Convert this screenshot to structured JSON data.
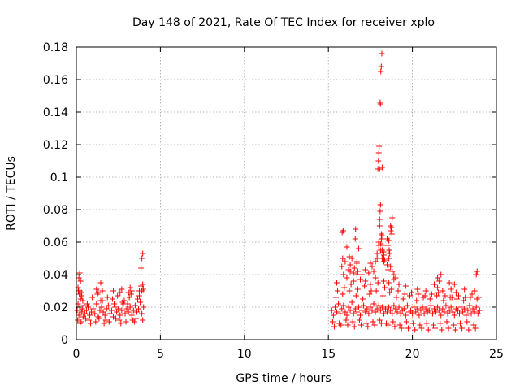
{
  "chart_data": {
    "type": "scatter",
    "title": "Day 148 of 2021, Rate Of TEC Index for receiver xplo",
    "xlabel": "GPS time / hours",
    "ylabel": "ROTI / TECUs",
    "xlim": [
      0,
      25
    ],
    "ylim": [
      0,
      0.18
    ],
    "x_ticks": [
      0,
      5,
      10,
      15,
      20,
      25
    ],
    "y_ticks": [
      0,
      0.02,
      0.04,
      0.06,
      0.08,
      0.1,
      0.12,
      0.14,
      0.16,
      0.18
    ],
    "x_tick_labels": [
      "0",
      "5",
      "10",
      "15",
      "20",
      "25"
    ],
    "y_tick_labels": [
      "0",
      "0.02",
      "0.04",
      "0.06",
      "0.08",
      "0.1",
      "0.12",
      "0.14",
      "0.16",
      "0.18"
    ],
    "grid": true,
    "marker": "+",
    "marker_color": "#ff0000",
    "series": [
      {
        "x": [
          0.05,
          0.1,
          0.15,
          0.2,
          0.25,
          0.3,
          0.35,
          0.4,
          0.45,
          0.5,
          0.6,
          0.7,
          0.8,
          0.9,
          1.0,
          1.1,
          1.2,
          1.3,
          1.4,
          1.5,
          1.6,
          1.7,
          1.8,
          1.9,
          2.0,
          2.1,
          2.2,
          2.3,
          2.4,
          2.5,
          2.6,
          2.7,
          2.8,
          2.9,
          3.0,
          3.1,
          3.2,
          3.3,
          3.4,
          3.5,
          3.6,
          3.7,
          3.8,
          3.9,
          4.0,
          0.08,
          0.18,
          0.28,
          0.38,
          0.55,
          0.75,
          0.95,
          1.15,
          1.35,
          1.55,
          1.75,
          1.95,
          2.15,
          2.35,
          2.55,
          2.75,
          2.95,
          3.15,
          3.35,
          3.55,
          3.75,
          3.95,
          0.12,
          0.22,
          0.32,
          0.65,
          0.85,
          1.25,
          1.45,
          1.65,
          1.85,
          2.25,
          2.45,
          2.65,
          2.85,
          3.05,
          3.25,
          3.45,
          3.65,
          3.85,
          0.1,
          0.2,
          0.25,
          0.3,
          1.2,
          1.3,
          1.45,
          1.55,
          2.2,
          2.6,
          2.7,
          3.1,
          3.2,
          3.3,
          3.75,
          3.85,
          3.9,
          3.95,
          3.98,
          0.15,
          0.2,
          3.85,
          3.9,
          3.95
        ],
        "y": [
          0.018,
          0.022,
          0.015,
          0.02,
          0.025,
          0.017,
          0.019,
          0.014,
          0.021,
          0.016,
          0.018,
          0.02,
          0.015,
          0.017,
          0.019,
          0.016,
          0.022,
          0.014,
          0.018,
          0.02,
          0.017,
          0.015,
          0.019,
          0.021,
          0.016,
          0.018,
          0.014,
          0.02,
          0.017,
          0.019,
          0.015,
          0.018,
          0.022,
          0.016,
          0.019,
          0.017,
          0.02,
          0.015,
          0.018,
          0.021,
          0.017,
          0.019,
          0.023,
          0.016,
          0.02,
          0.012,
          0.028,
          0.011,
          0.024,
          0.013,
          0.012,
          0.026,
          0.011,
          0.013,
          0.024,
          0.012,
          0.011,
          0.025,
          0.013,
          0.012,
          0.023,
          0.011,
          0.026,
          0.012,
          0.013,
          0.027,
          0.012,
          0.03,
          0.01,
          0.027,
          0.022,
          0.01,
          0.028,
          0.024,
          0.01,
          0.026,
          0.022,
          0.027,
          0.01,
          0.024,
          0.022,
          0.028,
          0.011,
          0.025,
          0.03,
          0.032,
          0.03,
          0.036,
          0.029,
          0.031,
          0.029,
          0.035,
          0.03,
          0.03,
          0.029,
          0.031,
          0.029,
          0.032,
          0.03,
          0.03,
          0.033,
          0.03,
          0.034,
          0.031,
          0.038,
          0.041,
          0.044,
          0.05,
          0.053
        ]
      },
      {
        "x": [
          15.2,
          15.3,
          15.4,
          15.5,
          15.6,
          15.7,
          15.8,
          15.9,
          16.0,
          16.1,
          16.2,
          16.3,
          16.4,
          16.5,
          16.6,
          16.7,
          16.8,
          16.9,
          17.0,
          17.1,
          17.2,
          17.3,
          17.4,
          17.5,
          17.6,
          17.7,
          17.8,
          17.9,
          18.0,
          18.1,
          18.2,
          18.3,
          18.4,
          18.5,
          18.6,
          18.7,
          18.8,
          18.9,
          19.0,
          19.1,
          19.2,
          19.3,
          19.4,
          19.5,
          19.6,
          19.7,
          19.8,
          19.9,
          20.0,
          20.1,
          20.2,
          20.3,
          20.4,
          20.5,
          20.6,
          20.7,
          20.8,
          20.9,
          21.0,
          21.1,
          21.2,
          21.3,
          21.4,
          21.5,
          21.6,
          21.7,
          21.8,
          21.9,
          22.0,
          22.1,
          22.2,
          22.3,
          22.4,
          22.5,
          22.6,
          22.7,
          22.8,
          22.9,
          23.0,
          23.1,
          23.2,
          23.3,
          23.4,
          23.5,
          23.6,
          23.7,
          23.8,
          23.9,
          24.0,
          15.25,
          15.45,
          15.65,
          15.85,
          16.05,
          16.25,
          16.45,
          16.65,
          16.85,
          17.05,
          17.25,
          17.45,
          17.65,
          17.85,
          18.05,
          18.25,
          18.45,
          18.65,
          18.85,
          19.05,
          19.25,
          19.45,
          19.65,
          19.85,
          20.05,
          20.25,
          20.45,
          20.65,
          20.85,
          21.05,
          21.25,
          21.45,
          21.65,
          21.85,
          22.05,
          22.25,
          22.45,
          22.65,
          22.85,
          23.05,
          23.25,
          23.45,
          23.65,
          23.85,
          15.35,
          15.55,
          15.75,
          15.95,
          16.15,
          16.35,
          16.55,
          16.75,
          16.95,
          17.15,
          17.35,
          17.55,
          17.75,
          17.95,
          18.15,
          18.35,
          18.55,
          18.75,
          18.95,
          19.15,
          19.35,
          19.55,
          19.75,
          19.95,
          20.15,
          20.35,
          20.55,
          20.75,
          20.95,
          21.15,
          21.35,
          21.55,
          21.75,
          21.95,
          22.15,
          22.35,
          22.55,
          22.75,
          22.95,
          23.15,
          23.35,
          23.55,
          23.75,
          23.95,
          15.5,
          15.9,
          16.1,
          16.3,
          16.5,
          16.7,
          16.9,
          17.2,
          17.5,
          17.8,
          18.3,
          18.6,
          18.9,
          19.2,
          19.6,
          20.3,
          20.8,
          21.3,
          21.5,
          21.8,
          22.3,
          22.6,
          23.1,
          23.7,
          15.8,
          15.85,
          16.0,
          16.2,
          16.3,
          16.5,
          16.55,
          16.7,
          16.75,
          17.0,
          17.2,
          17.4,
          17.6,
          17.7,
          17.8,
          17.9,
          18.0,
          18.05,
          18.1,
          18.15,
          18.2,
          18.3,
          18.5,
          18.55,
          18.6,
          18.7,
          18.8,
          18.9,
          19.0,
          21.5,
          21.6,
          21.7,
          22.2,
          22.5,
          23.8,
          23.85,
          15.82,
          15.88,
          16.1,
          16.25,
          16.4,
          16.6,
          16.62,
          16.7,
          16.8,
          17.5,
          17.9,
          18.0,
          18.05,
          18.08,
          18.1,
          18.12,
          18.15,
          18.18,
          18.2,
          18.25,
          18.28,
          18.3,
          18.35,
          18.5,
          18.55,
          18.6,
          18.62,
          18.65,
          18.7,
          18.72,
          18.75,
          18.78,
          18.8,
          17.95,
          17.98,
          18.0,
          18.02,
          18.05,
          18.08,
          18.1,
          18.12,
          18.15,
          18.18,
          18.2
        ],
        "y": [
          0.018,
          0.015,
          0.02,
          0.017,
          0.022,
          0.016,
          0.019,
          0.021,
          0.017,
          0.015,
          0.02,
          0.018,
          0.023,
          0.016,
          0.019,
          0.017,
          0.02,
          0.015,
          0.018,
          0.021,
          0.017,
          0.019,
          0.016,
          0.02,
          0.018,
          0.022,
          0.017,
          0.019,
          0.021,
          0.018,
          0.02,
          0.016,
          0.019,
          0.017,
          0.02,
          0.018,
          0.016,
          0.021,
          0.019,
          0.017,
          0.02,
          0.016,
          0.018,
          0.019,
          0.015,
          0.021,
          0.017,
          0.018,
          0.016,
          0.02,
          0.017,
          0.019,
          0.015,
          0.018,
          0.02,
          0.016,
          0.019,
          0.017,
          0.018,
          0.021,
          0.016,
          0.019,
          0.017,
          0.02,
          0.018,
          0.015,
          0.019,
          0.017,
          0.021,
          0.016,
          0.018,
          0.02,
          0.017,
          0.015,
          0.019,
          0.018,
          0.016,
          0.02,
          0.017,
          0.019,
          0.015,
          0.018,
          0.021,
          0.016,
          0.019,
          0.017,
          0.02,
          0.016,
          0.018,
          0.011,
          0.026,
          0.01,
          0.028,
          0.012,
          0.03,
          0.011,
          0.027,
          0.012,
          0.025,
          0.01,
          0.028,
          0.011,
          0.03,
          0.012,
          0.027,
          0.01,
          0.029,
          0.011,
          0.026,
          0.009,
          0.025,
          0.011,
          0.027,
          0.01,
          0.024,
          0.009,
          0.026,
          0.01,
          0.025,
          0.009,
          0.027,
          0.01,
          0.024,
          0.011,
          0.026,
          0.009,
          0.025,
          0.01,
          0.024,
          0.011,
          0.026,
          0.009,
          0.025,
          0.008,
          0.03,
          0.009,
          0.032,
          0.009,
          0.034,
          0.008,
          0.031,
          0.009,
          0.033,
          0.008,
          0.03,
          0.009,
          0.035,
          0.01,
          0.032,
          0.009,
          0.031,
          0.008,
          0.03,
          0.007,
          0.028,
          0.007,
          0.029,
          0.006,
          0.028,
          0.007,
          0.027,
          0.006,
          0.028,
          0.007,
          0.029,
          0.006,
          0.027,
          0.007,
          0.026,
          0.006,
          0.027,
          0.007,
          0.026,
          0.006,
          0.028,
          0.007,
          0.026,
          0.035,
          0.04,
          0.038,
          0.042,
          0.036,
          0.04,
          0.037,
          0.036,
          0.034,
          0.038,
          0.036,
          0.035,
          0.037,
          0.034,
          0.033,
          0.031,
          0.03,
          0.034,
          0.032,
          0.03,
          0.031,
          0.029,
          0.031,
          0.03,
          0.045,
          0.05,
          0.048,
          0.043,
          0.046,
          0.041,
          0.044,
          0.047,
          0.042,
          0.04,
          0.043,
          0.041,
          0.045,
          0.042,
          0.048,
          0.05,
          0.06,
          0.07,
          0.055,
          0.065,
          0.05,
          0.048,
          0.046,
          0.043,
          0.05,
          0.045,
          0.042,
          0.04,
          0.038,
          0.038,
          0.036,
          0.04,
          0.035,
          0.034,
          0.04,
          0.042,
          0.066,
          0.067,
          0.057,
          0.051,
          0.05,
          0.062,
          0.068,
          0.048,
          0.056,
          0.047,
          0.053,
          0.058,
          0.074,
          0.079,
          0.083,
          0.059,
          0.062,
          0.064,
          0.055,
          0.058,
          0.054,
          0.052,
          0.049,
          0.062,
          0.058,
          0.061,
          0.055,
          0.053,
          0.07,
          0.067,
          0.069,
          0.065,
          0.075,
          0.105,
          0.11,
          0.115,
          0.119,
          0.105,
          0.146,
          0.145,
          0.165,
          0.168,
          0.176,
          0.106
        ]
      }
    ]
  }
}
